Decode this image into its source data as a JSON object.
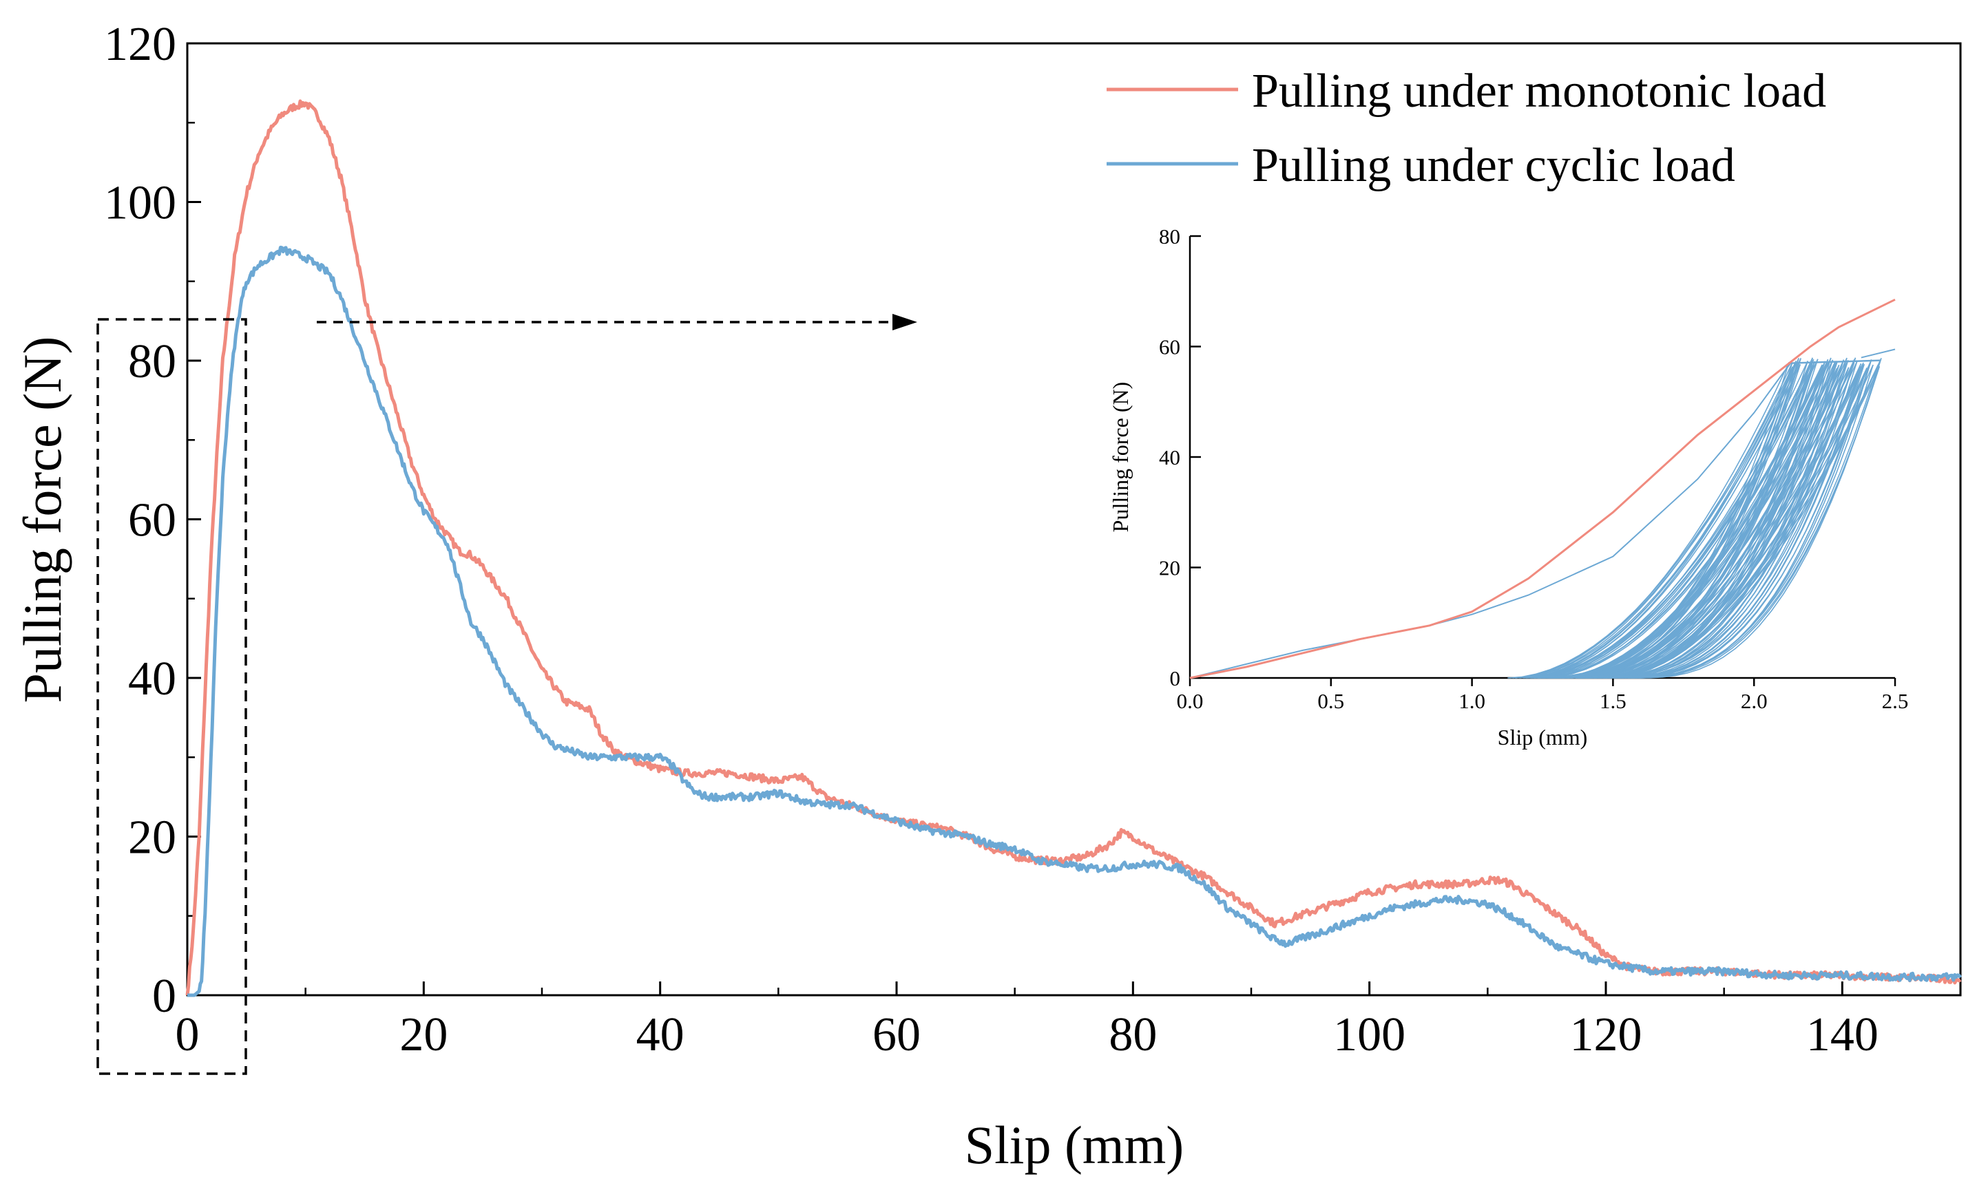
{
  "chart_data": {
    "type": "line",
    "main": {
      "xlabel": "Slip (mm)",
      "ylabel": "Pulling force (N)",
      "xlim": [
        0,
        150
      ],
      "ylim": [
        0,
        120
      ],
      "xticks": [
        "0",
        "20",
        "40",
        "60",
        "80",
        "100",
        "120",
        "140"
      ],
      "yticks": [
        "0",
        "20",
        "40",
        "60",
        "80",
        "100",
        "120"
      ],
      "grid": false,
      "legend_position": "top-right",
      "series": [
        {
          "name": "Pulling under monotonic load",
          "color": "#F08A7E",
          "x": [
            0,
            0.5,
            1,
            1.5,
            2,
            2.5,
            3,
            4,
            5,
            6,
            7,
            8,
            9,
            10,
            11,
            12,
            13,
            14,
            15,
            16,
            17,
            18,
            19,
            20,
            21,
            22,
            23,
            24,
            25,
            26,
            27,
            28,
            29,
            30,
            31,
            32,
            33,
            34,
            35,
            36,
            37,
            38,
            39,
            40,
            42,
            44,
            46,
            48,
            50,
            52,
            54,
            56,
            58,
            60,
            62,
            64,
            66,
            68,
            70,
            72,
            74,
            76,
            78,
            79,
            80,
            82,
            84,
            86,
            88,
            90,
            92,
            94,
            96,
            98,
            100,
            102,
            104,
            106,
            108,
            110,
            111,
            112,
            114,
            116,
            118,
            120,
            122,
            124,
            126,
            128,
            130,
            135,
            140,
            145,
            150
          ],
          "y": [
            0,
            8,
            20,
            38,
            55,
            68,
            80,
            93,
            101,
            106,
            109,
            111,
            112,
            112.5,
            111,
            108,
            103,
            96,
            88,
            82,
            77,
            72,
            67,
            63,
            60,
            58,
            56,
            55.5,
            54,
            52,
            50,
            47,
            44,
            41,
            39,
            37,
            36.5,
            36,
            33,
            31,
            30,
            29.5,
            29,
            28.5,
            28,
            28,
            28,
            27.5,
            27,
            27.5,
            25,
            24,
            23,
            22,
            21.5,
            21,
            20,
            18.5,
            17.5,
            17,
            17,
            17.5,
            19,
            20.5,
            20,
            18,
            16.5,
            15,
            13,
            11,
            9,
            10,
            11,
            12,
            13,
            13.5,
            14,
            14,
            14,
            14.5,
            14.5,
            14,
            12,
            10,
            8,
            5,
            3.5,
            3,
            3,
            3,
            3,
            2.5,
            2.5,
            2.2,
            2
          ]
        },
        {
          "name": "Pulling under cyclic load",
          "color": "#6CA8D4",
          "x": [
            0,
            0.6,
            1,
            1.2,
            1.5,
            2,
            2.5,
            3,
            3.5,
            4,
            4.5,
            5,
            6,
            7,
            8,
            9,
            10,
            11,
            12,
            13,
            14,
            15,
            16,
            17,
            18,
            19,
            20,
            21,
            22,
            23,
            24,
            25,
            26,
            27,
            28,
            29,
            30,
            31,
            32,
            33,
            34,
            35,
            36,
            37,
            38,
            39,
            40,
            41,
            42,
            43,
            44,
            46,
            48,
            50,
            52,
            54,
            56,
            58,
            60,
            62,
            64,
            66,
            68,
            70,
            72,
            74,
            76,
            78,
            80,
            82,
            84,
            86,
            88,
            90,
            92,
            93,
            94,
            96,
            98,
            100,
            102,
            104,
            106,
            108,
            110,
            112,
            114,
            116,
            118,
            120,
            122,
            124,
            126,
            128,
            130,
            135,
            140,
            145,
            150
          ],
          "y": [
            0,
            0,
            0.5,
            2,
            10,
            30,
            50,
            65,
            75,
            82,
            87,
            90,
            92,
            93,
            94,
            93.5,
            93,
            92,
            91,
            88,
            84,
            80,
            76,
            72,
            68,
            64,
            61,
            59,
            57,
            52,
            47,
            45,
            42,
            39,
            37,
            35,
            33,
            31.5,
            31,
            30.5,
            30,
            30,
            30,
            30,
            30,
            30,
            30,
            29,
            27,
            25.5,
            25,
            25,
            25,
            25.5,
            24.5,
            24,
            24,
            23,
            22,
            21,
            20.5,
            20,
            19,
            18.5,
            17,
            16.5,
            16,
            16,
            16.5,
            16.5,
            16,
            14,
            11,
            9,
            7,
            6.5,
            7,
            8,
            9,
            10,
            11,
            11.5,
            12,
            12,
            11.5,
            10,
            8,
            6,
            5,
            4,
            3.5,
            3,
            3,
            3,
            3,
            2.5,
            2.5,
            2.3,
            2.3
          ]
        }
      ]
    },
    "inset": {
      "xlabel": "Slip (mm)",
      "ylabel": "Pulling force (N)",
      "xlim": [
        0,
        2.5
      ],
      "ylim": [
        0,
        80
      ],
      "xticks": [
        "0.0",
        "0.5",
        "1.0",
        "1.5",
        "2.0",
        "2.5"
      ],
      "yticks": [
        "0",
        "20",
        "40",
        "60",
        "80"
      ],
      "monotonic": {
        "x": [
          0,
          0.2,
          0.4,
          0.6,
          0.85,
          1.0,
          1.2,
          1.5,
          1.8,
          2.0,
          2.2,
          2.3,
          2.5
        ],
        "y": [
          0,
          2,
          4.5,
          7,
          9.5,
          12,
          18,
          30,
          44,
          52,
          60,
          63.5,
          68.5
        ]
      },
      "cyclic_envelope": {
        "x": [
          0,
          0.2,
          0.4,
          0.6,
          0.85,
          1.0,
          1.2,
          1.5,
          1.8,
          2.0,
          2.1,
          2.13
        ],
        "y": [
          0,
          2.5,
          5,
          7,
          9.5,
          11.5,
          15,
          22,
          36,
          48,
          55,
          57
        ]
      },
      "cyclic_loops": {
        "count": 55,
        "start_x": [
          1.13,
          1.5
        ],
        "peak_x": [
          2.13,
          2.45
        ],
        "peak_y": [
          56,
          58
        ],
        "final_segment": {
          "x": [
            2.38,
            2.5
          ],
          "y": [
            58,
            59.5
          ]
        }
      }
    }
  }
}
